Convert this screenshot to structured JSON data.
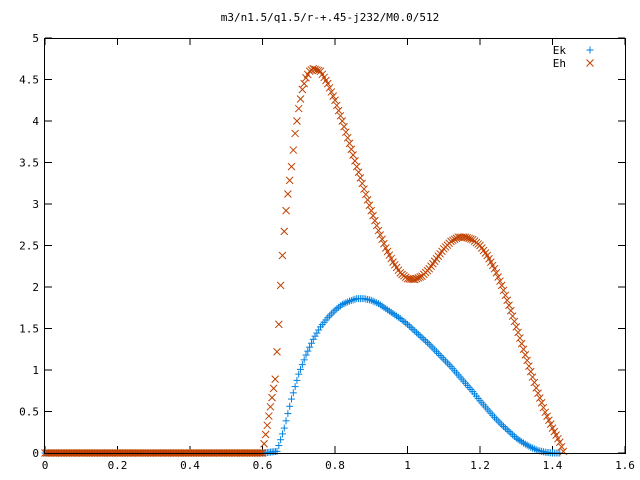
{
  "chart_data": {
    "type": "scatter",
    "title": "m3/n1.5/q1.5/r-+.45-j232/M0.0/512",
    "xlabel": "",
    "ylabel": "",
    "xlim": [
      0,
      1.6
    ],
    "ylim": [
      0,
      5
    ],
    "xticks": [
      "0",
      "0.2",
      "0.4",
      "0.6",
      "0.8",
      "1",
      "1.2",
      "1.4",
      "1.6"
    ],
    "yticks": [
      "0",
      "0.5",
      "1",
      "1.5",
      "2",
      "2.5",
      "3",
      "3.5",
      "4",
      "4.5",
      "5"
    ],
    "grid": false,
    "legend_position": "top-right",
    "series": [
      {
        "name": "Ek",
        "marker": "plus",
        "color": "#0080e0",
        "x": [
          0.0,
          0.1,
          0.2,
          0.3,
          0.4,
          0.5,
          0.6,
          0.64,
          0.66,
          0.68,
          0.7,
          0.72,
          0.74,
          0.76,
          0.78,
          0.8,
          0.82,
          0.84,
          0.86,
          0.88,
          0.9,
          0.92,
          0.94,
          0.96,
          0.98,
          1.0,
          1.02,
          1.04,
          1.06,
          1.08,
          1.1,
          1.12,
          1.14,
          1.16,
          1.18,
          1.2,
          1.22,
          1.24,
          1.26,
          1.28,
          1.3,
          1.32,
          1.34,
          1.36,
          1.38,
          1.4,
          1.42
        ],
        "y": [
          0,
          0,
          0,
          0,
          0,
          0,
          0,
          0.02,
          0.3,
          0.65,
          0.95,
          1.18,
          1.37,
          1.52,
          1.63,
          1.72,
          1.79,
          1.83,
          1.86,
          1.86,
          1.84,
          1.8,
          1.74,
          1.68,
          1.62,
          1.55,
          1.47,
          1.39,
          1.31,
          1.22,
          1.13,
          1.04,
          0.94,
          0.84,
          0.74,
          0.63,
          0.53,
          0.43,
          0.34,
          0.26,
          0.18,
          0.12,
          0.07,
          0.03,
          0.01,
          0.0,
          0.0
        ]
      },
      {
        "name": "Eh",
        "marker": "cross",
        "color": "#c04000",
        "x": [
          0.0,
          0.1,
          0.2,
          0.3,
          0.4,
          0.5,
          0.6,
          0.635,
          0.645,
          0.65,
          0.655,
          0.66,
          0.665,
          0.67,
          0.68,
          0.69,
          0.7,
          0.71,
          0.72,
          0.73,
          0.74,
          0.76,
          0.78,
          0.8,
          0.82,
          0.84,
          0.86,
          0.88,
          0.9,
          0.92,
          0.94,
          0.96,
          0.98,
          1.0,
          1.02,
          1.04,
          1.06,
          1.08,
          1.1,
          1.12,
          1.14,
          1.16,
          1.18,
          1.2,
          1.22,
          1.24,
          1.26,
          1.28,
          1.3,
          1.32,
          1.34,
          1.36,
          1.38,
          1.4,
          1.42,
          1.43
        ],
        "y": [
          0,
          0,
          0,
          0,
          0,
          0,
          0,
          0.89,
          1.55,
          2.02,
          2.38,
          2.67,
          2.92,
          3.12,
          3.45,
          3.85,
          4.15,
          4.38,
          4.52,
          4.6,
          4.63,
          4.6,
          4.45,
          4.25,
          4.0,
          3.73,
          3.45,
          3.18,
          2.92,
          2.68,
          2.47,
          2.3,
          2.17,
          2.1,
          2.09,
          2.13,
          2.22,
          2.34,
          2.46,
          2.55,
          2.6,
          2.6,
          2.57,
          2.5,
          2.38,
          2.22,
          2.02,
          1.78,
          1.52,
          1.25,
          0.98,
          0.72,
          0.49,
          0.3,
          0.13,
          0.02
        ]
      }
    ]
  }
}
